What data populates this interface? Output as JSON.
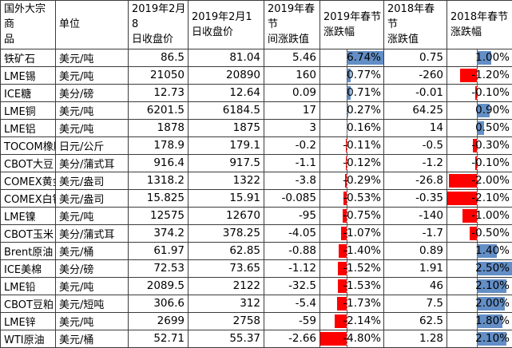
{
  "ui": {
    "headers": [
      "国外大宗商\n品",
      "单位",
      "2019年2月8\n日收盘价",
      "2019年2月1\n日收盘价",
      "2019年春节\n间涨跌值",
      "2019年春节\n涨跌幅",
      "2018年春节\n涨跌值",
      "2018年春节\n涨跌幅"
    ]
  },
  "chart_data": {
    "type": "table",
    "columns": [
      "国外大宗商品",
      "单位",
      "2019年2月8日收盘价",
      "2019年2月1日收盘价",
      "2019年春节间涨跌值",
      "2019年春节涨跌幅",
      "2018年春节涨跌值",
      "2018年春节涨跌幅"
    ],
    "column_keys": [
      "commodity",
      "unit",
      "close-2019-02-08",
      "close-2019-02-01",
      "change-2019-cny",
      "pct-2019-cny",
      "change-2018-cny",
      "pct-2018-cny"
    ],
    "rows": [
      [
        "铁矿石",
        "美元/吨",
        "86.5",
        "81.04",
        "5.46",
        "6.74%",
        "0.75",
        "1.00%"
      ],
      [
        "LME锡",
        "美元/吨",
        "21050",
        "20890",
        "160",
        "0.77%",
        "-260",
        "-1.20%"
      ],
      [
        "ICE糖",
        "美分/磅",
        "12.73",
        "12.64",
        "0.09",
        "0.71%",
        "-0.01",
        "-0.10%"
      ],
      [
        "LME铜",
        "美元/吨",
        "6201.5",
        "6184.5",
        "17",
        "0.27%",
        "64.25",
        "0.90%"
      ],
      [
        "LME铝",
        "美元/吨",
        "1878",
        "1875",
        "3",
        "0.16%",
        "14",
        "0.50%"
      ],
      [
        "TOCOM橡胶",
        "日元/公斤",
        "178.9",
        "179.1",
        "-0.2",
        "-0.11%",
        "-0.5",
        "-0.30%"
      ],
      [
        "CBOT大豆",
        "美分/蒲式耳",
        "916.4",
        "917.5",
        "-1.1",
        "-0.12%",
        "-1.2",
        "-0.10%"
      ],
      [
        "COMEX黄金",
        "美元/盎司",
        "1318.2",
        "1322",
        "-3.8",
        "-0.29%",
        "-26.8",
        "-2.00%"
      ],
      [
        "COMEX白银",
        "美元/盎司",
        "15.825",
        "15.91",
        "-0.085",
        "-0.53%",
        "-0.35",
        "-2.10%"
      ],
      [
        "LME镍",
        "美元/吨",
        "12575",
        "12670",
        "-95",
        "-0.75%",
        "-140",
        "-1.00%"
      ],
      [
        "CBOT玉米",
        "美分/蒲式耳",
        "374.2",
        "378.25",
        "-4.05",
        "-1.07%",
        "-1.7",
        "-0.50%"
      ],
      [
        "Brent原油",
        "美元/桶",
        "61.97",
        "62.85",
        "-0.88",
        "-1.40%",
        "0.89",
        "1.40%"
      ],
      [
        "ICE美棉",
        "美分/磅",
        "72.53",
        "73.65",
        "-1.12",
        "-1.52%",
        "1.91",
        "2.50%"
      ],
      [
        "LME铅",
        "美元/吨",
        "2089.5",
        "2122",
        "-32.5",
        "-1.53%",
        "46",
        "2.10%"
      ],
      [
        "CBOT豆粕",
        "美元/短吨",
        "306.6",
        "312",
        "-5.4",
        "-1.73%",
        "7.5",
        "2.00%"
      ],
      [
        "LME锌",
        "美元/吨",
        "2699",
        "2758",
        "-59",
        "-2.14%",
        "62.5",
        "1.80%"
      ],
      [
        "WTI原油",
        "美元/桶",
        "52.71",
        "55.37",
        "-2.66",
        "-4.80%",
        "1.28",
        "2.10%"
      ]
    ],
    "databars": {
      "5": {
        "min": -4.8,
        "max": 6.74,
        "positive_color": "#638EC6",
        "negative_color": "#FF0000"
      },
      "7": {
        "min": -2.1,
        "max": 2.5,
        "positive_color": "#638EC6",
        "negative_color": "#FF0000"
      }
    },
    "legend_position": "none",
    "grid": true
  }
}
